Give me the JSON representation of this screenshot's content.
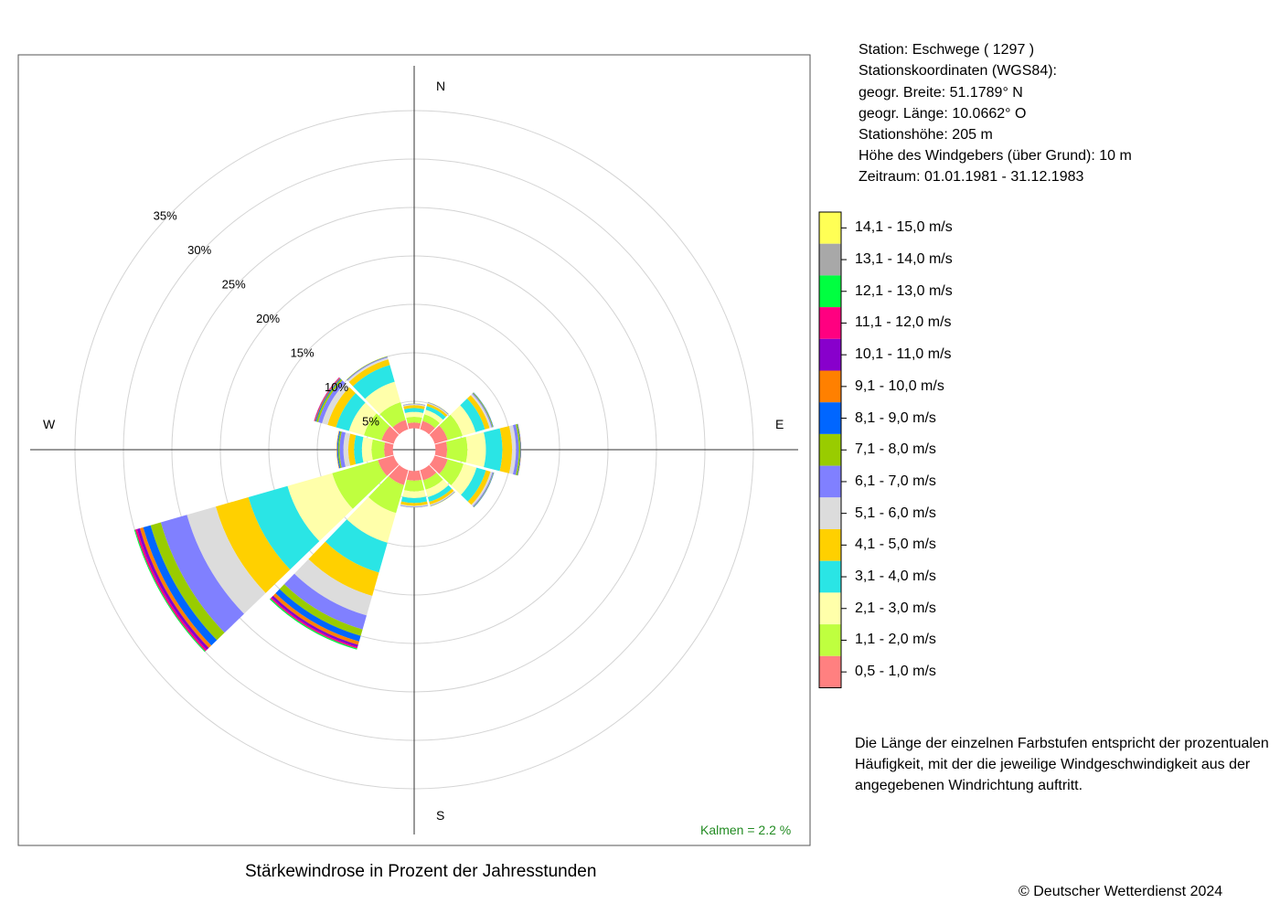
{
  "station": {
    "lines": [
      "Station:  Eschwege  ( 1297 )",
      "Stationskoordinaten (WGS84):",
      "geogr. Breite: 51.1789° N",
      "geogr. Länge: 10.0662° O",
      "Stationshöhe: 205 m",
      "Höhe des Windgebers (über Grund): 10 m",
      "Zeitraum: 01.01.1981 - 31.12.1983"
    ]
  },
  "description": {
    "lines": [
      "Die Länge der einzelnen Farbstufen entspricht der prozentualen",
      "Häufigkeit, mit der die jeweilige Windgeschwindigkeit aus der",
      "angegebenen Windrichtung auftritt."
    ]
  },
  "copyright": "© Deutscher Wetterdienst  2024",
  "chart_data": {
    "type": "wind-rose",
    "title": "Stärkewindrose in Prozent der Jahresstunden",
    "calm_label": "Kalmen  =  2.2 %",
    "calm_color": "#228B22",
    "compass_labels": [
      "N",
      "E",
      "S",
      "W"
    ],
    "ring_labels": [
      "5%",
      "10%",
      "15%",
      "20%",
      "25%",
      "30%",
      "35%"
    ],
    "ring_values": [
      5,
      10,
      15,
      20,
      25,
      30,
      35
    ],
    "grid": true,
    "legend_position": "right",
    "speed_classes": [
      {
        "label": "0,5 - 1,0 m/s",
        "color": "#FF8080"
      },
      {
        "label": "1,1 - 2,0 m/s",
        "color": "#BFFF3F"
      },
      {
        "label": "2,1 - 3,0 m/s",
        "color": "#FFFFAA"
      },
      {
        "label": "3,1 - 4,0 m/s",
        "color": "#2AE5E5"
      },
      {
        "label": "4,1 - 5,0 m/s",
        "color": "#FFD000"
      },
      {
        "label": "5,1 - 6,0 m/s",
        "color": "#DCDCDC"
      },
      {
        "label": "6,1 - 7,0 m/s",
        "color": "#8080FF"
      },
      {
        "label": "7,1 - 8,0 m/s",
        "color": "#99CC00"
      },
      {
        "label": "8,1 - 9,0 m/s",
        "color": "#0066FF"
      },
      {
        "label": "9,1 - 10,0 m/s",
        "color": "#FF8000"
      },
      {
        "label": "10,1 - 11,0 m/s",
        "color": "#8800CC"
      },
      {
        "label": "11,1 - 12,0 m/s",
        "color": "#FF0080"
      },
      {
        "label": "12,1 - 13,0 m/s",
        "color": "#00FF40"
      },
      {
        "label": "13,1 - 14,0 m/s",
        "color": "#A8A8A8"
      },
      {
        "label": "14,1 - 15,0 m/s",
        "color": "#FFFF55"
      }
    ],
    "inner_radius_percent": 2.2,
    "directions": [
      {
        "deg": 0,
        "values": [
          0.6,
          0.6,
          0.5,
          0.4,
          0.3,
          0.1,
          0.05,
          0.02
        ]
      },
      {
        "deg": 30,
        "values": [
          0.9,
          0.7,
          0.5,
          0.4,
          0.25,
          0.1,
          0.05,
          0.03
        ]
      },
      {
        "deg": 60,
        "values": [
          1.4,
          1.6,
          1.4,
          1.0,
          0.5,
          0.2,
          0.1,
          0.08,
          0.04
        ]
      },
      {
        "deg": 90,
        "values": [
          1.2,
          2.1,
          1.9,
          1.7,
          1.0,
          0.4,
          0.3,
          0.15,
          0.06,
          0.03
        ]
      },
      {
        "deg": 120,
        "values": [
          1.4,
          1.7,
          1.4,
          1.0,
          0.5,
          0.2,
          0.1,
          0.05,
          0.03
        ]
      },
      {
        "deg": 150,
        "values": [
          1.1,
          1.0,
          0.8,
          0.5,
          0.3,
          0.1,
          0.05,
          0.03
        ]
      },
      {
        "deg": 180,
        "values": [
          1.0,
          1.1,
          0.7,
          0.5,
          0.3,
          0.1,
          0.05,
          0.02
        ]
      },
      {
        "deg": 210,
        "values": [
          1.6,
          3.0,
          3.2,
          3.2,
          2.5,
          2.1,
          1.5,
          0.7,
          0.6,
          0.35,
          0.25,
          0.15,
          0.12
        ]
      },
      {
        "deg": 240,
        "values": [
          1.7,
          4.9,
          4.8,
          4.2,
          3.5,
          3.1,
          2.8,
          1.1,
          0.8,
          0.35,
          0.3,
          0.2,
          0.1
        ]
      },
      {
        "deg": 270,
        "values": [
          0.9,
          1.3,
          1.0,
          0.8,
          0.6,
          0.5,
          0.4,
          0.15,
          0.1,
          0.05
        ]
      },
      {
        "deg": 300,
        "values": [
          1.3,
          1.9,
          1.6,
          1.4,
          0.9,
          0.6,
          0.4,
          0.2,
          0.1,
          0.08,
          0.05,
          0.03
        ]
      },
      {
        "deg": 330,
        "values": [
          1.0,
          1.9,
          2.2,
          1.8,
          0.6,
          0.2,
          0.1,
          0.05
        ]
      }
    ]
  }
}
